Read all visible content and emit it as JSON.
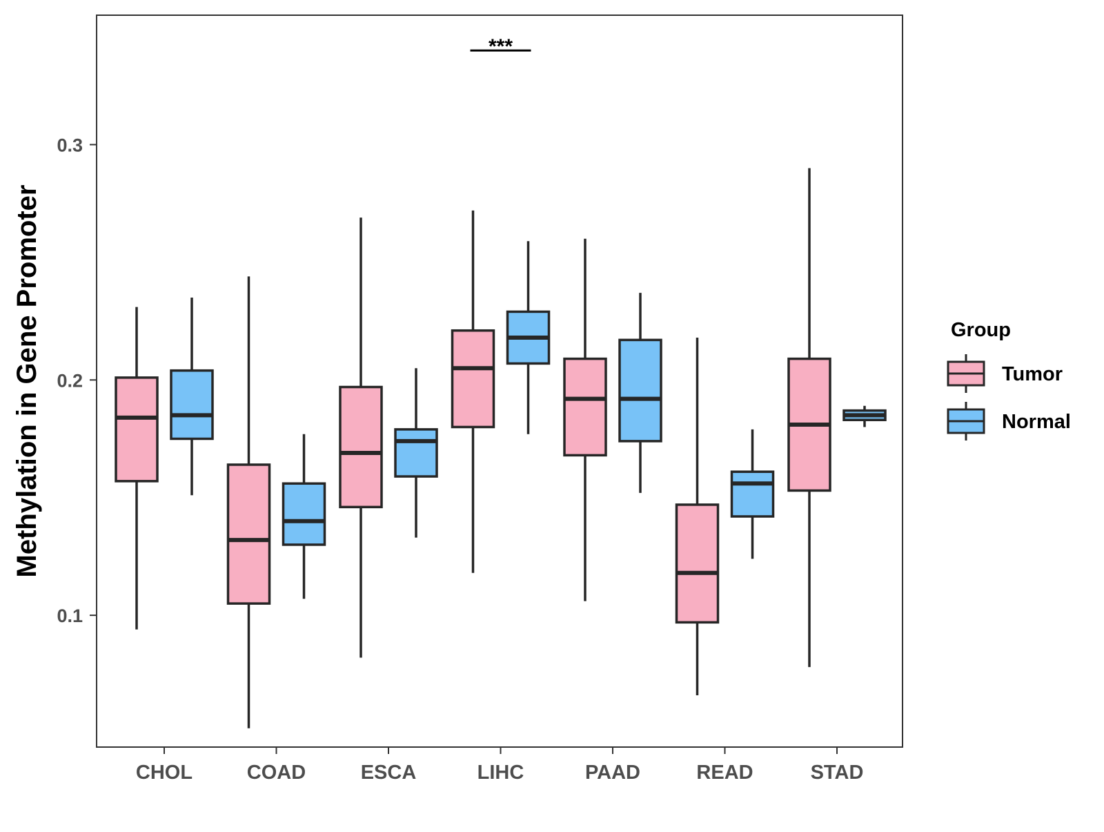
{
  "chart_data": {
    "type": "boxplot",
    "title": "",
    "xlabel": "",
    "ylabel": "Methylation in Gene Promoter",
    "ylim": [
      0.044,
      0.355
    ],
    "yticks": [
      0.1,
      0.2,
      0.3
    ],
    "ytick_labels": [
      "0.1",
      "0.2",
      "0.3"
    ],
    "categories": [
      "CHOL",
      "COAD",
      "ESCA",
      "LIHC",
      "PAAD",
      "READ",
      "STAD"
    ],
    "legend": {
      "title": "Group",
      "position": "right",
      "entries": [
        "Tumor",
        "Normal"
      ]
    },
    "colors": {
      "Tumor": "#F8AFC2",
      "Normal": "#78C2F7",
      "outline": "#262626",
      "panel_border": "#333333",
      "axis_text": "#4d4d4d"
    },
    "series": [
      {
        "name": "Tumor",
        "boxes": [
          {
            "category": "CHOL",
            "min": 0.094,
            "q1": 0.157,
            "median": 0.184,
            "q3": 0.201,
            "max": 0.231
          },
          {
            "category": "COAD",
            "min": 0.052,
            "q1": 0.105,
            "median": 0.132,
            "q3": 0.164,
            "max": 0.244
          },
          {
            "category": "ESCA",
            "min": 0.082,
            "q1": 0.146,
            "median": 0.169,
            "q3": 0.197,
            "max": 0.269
          },
          {
            "category": "LIHC",
            "min": 0.118,
            "q1": 0.18,
            "median": 0.205,
            "q3": 0.221,
            "max": 0.272
          },
          {
            "category": "PAAD",
            "min": 0.106,
            "q1": 0.168,
            "median": 0.192,
            "q3": 0.209,
            "max": 0.26
          },
          {
            "category": "READ",
            "min": 0.066,
            "q1": 0.097,
            "median": 0.118,
            "q3": 0.147,
            "max": 0.218
          },
          {
            "category": "STAD",
            "min": 0.078,
            "q1": 0.153,
            "median": 0.181,
            "q3": 0.209,
            "max": 0.29
          }
        ]
      },
      {
        "name": "Normal",
        "boxes": [
          {
            "category": "CHOL",
            "min": 0.151,
            "q1": 0.175,
            "median": 0.185,
            "q3": 0.204,
            "max": 0.235
          },
          {
            "category": "COAD",
            "min": 0.107,
            "q1": 0.13,
            "median": 0.14,
            "q3": 0.156,
            "max": 0.177
          },
          {
            "category": "ESCA",
            "min": 0.133,
            "q1": 0.159,
            "median": 0.174,
            "q3": 0.179,
            "max": 0.205
          },
          {
            "category": "LIHC",
            "min": 0.177,
            "q1": 0.207,
            "median": 0.218,
            "q3": 0.229,
            "max": 0.259
          },
          {
            "category": "PAAD",
            "min": 0.152,
            "q1": 0.174,
            "median": 0.192,
            "q3": 0.217,
            "max": 0.237
          },
          {
            "category": "READ",
            "min": 0.124,
            "q1": 0.142,
            "median": 0.156,
            "q3": 0.161,
            "max": 0.179
          },
          {
            "category": "STAD",
            "min": 0.18,
            "q1": 0.183,
            "median": 0.185,
            "q3": 0.187,
            "max": 0.189
          }
        ]
      }
    ],
    "annotations": [
      {
        "category": "LIHC",
        "text": "***",
        "y": 0.34
      }
    ]
  }
}
